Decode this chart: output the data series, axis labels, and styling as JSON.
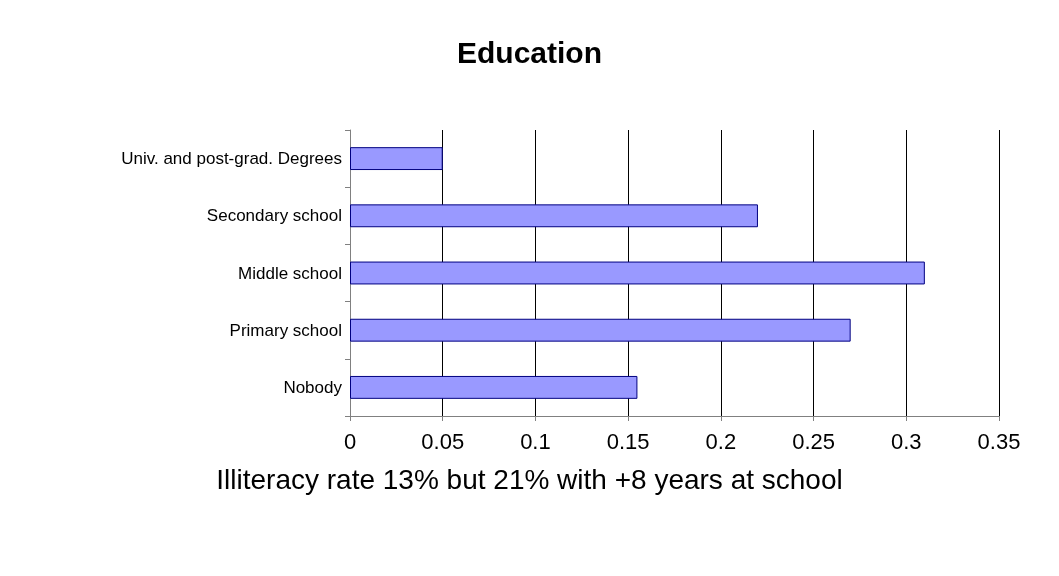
{
  "chart_data": {
    "type": "bar",
    "orientation": "horizontal",
    "title": "Education",
    "categories": [
      "Univ. and post-grad. Degrees",
      "Secondary school",
      "Middle school",
      "Primary school",
      "Nobody"
    ],
    "values": [
      0.05,
      0.22,
      0.31,
      0.27,
      0.155
    ],
    "color": "#9999ff",
    "xlim": [
      0,
      0.35
    ],
    "xticks": [
      0,
      0.05,
      0.1,
      0.15,
      0.2,
      0.25,
      0.3,
      0.35
    ],
    "grid": "x",
    "annotations": [
      "Illiteracy rate 13% but 21% with +8 years at school"
    ]
  }
}
